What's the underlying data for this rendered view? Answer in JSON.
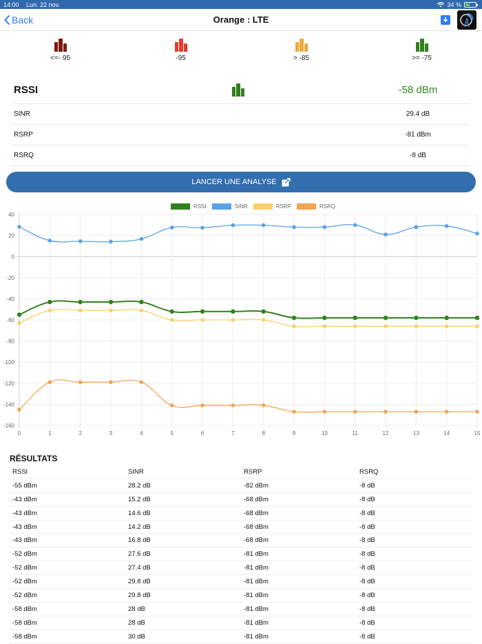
{
  "statusbar": {
    "time": "14:00",
    "date": "Lun. 22 nov.",
    "battery": "34 %"
  },
  "nav": {
    "back_label": "Back",
    "title": "Orange : LTE"
  },
  "signal_legend": [
    {
      "label": "<=- 95",
      "color": "#7d1a12"
    },
    {
      "label": "-95",
      "color": "#e73a2a"
    },
    {
      "label": "> -85",
      "color": "#f0a93a"
    },
    {
      "label": ">= -75",
      "color": "#32801f"
    }
  ],
  "metrics": {
    "main": {
      "name": "RSSI",
      "value": "-58 dBm",
      "color": "#32801f"
    },
    "rows": [
      {
        "name": "SINR",
        "value": "29.4 dB"
      },
      {
        "name": "RSRP",
        "value": "-81 dBm"
      },
      {
        "name": "RSRQ",
        "value": "-8 dB"
      }
    ]
  },
  "analyse_button": {
    "label": "LANCER UNE ANALYSE"
  },
  "chart_data": {
    "type": "line",
    "title": "",
    "xlabel": "",
    "ylabel": "",
    "x": [
      0,
      1,
      2,
      3,
      4,
      5,
      6,
      7,
      8,
      9,
      10,
      11,
      12,
      13,
      14,
      15
    ],
    "ylim": [
      -160,
      40
    ],
    "yticks": [
      40,
      20,
      0,
      -20,
      -40,
      -60,
      -80,
      -100,
      -120,
      -140,
      -160
    ],
    "grid": true,
    "legend_position": "top",
    "series": [
      {
        "name": "RSSI",
        "color": "#32801f",
        "values": [
          -55,
          -43,
          -43,
          -43,
          -43,
          -52,
          -52,
          -52,
          -52,
          -58,
          -58,
          -58,
          -58,
          -58,
          -58,
          -58
        ]
      },
      {
        "name": "SINR",
        "color": "#5aa2e6",
        "values": [
          28.2,
          15.2,
          14.6,
          14.2,
          16.8,
          27.6,
          27.4,
          29.8,
          29.8,
          28,
          28,
          30,
          21,
          28,
          29,
          22
        ]
      },
      {
        "name": "RSRP",
        "color": "#f8d16c",
        "values": [
          -63,
          -51,
          -51,
          -51,
          -51,
          -60,
          -60,
          -60,
          -60,
          -66,
          -66,
          -66,
          -66,
          -66,
          -66,
          -66
        ]
      },
      {
        "name": "RSRQ",
        "color": "#f2a553",
        "values": [
          -145,
          -119,
          -119,
          -119,
          -119,
          -141,
          -141,
          -141,
          -141,
          -147,
          -147,
          -147,
          -147,
          -147,
          -147,
          -147
        ]
      }
    ]
  },
  "results": {
    "title": "RÉSULTATS",
    "columns": [
      "RSSI",
      "SINR",
      "RSRP",
      "RSRQ"
    ],
    "rows": [
      [
        "-55 dBm",
        "28.2 dB",
        "-82 dBm",
        "-8 dB"
      ],
      [
        "-43 dBm",
        "15.2 dB",
        "-68 dBm",
        "-8 dB"
      ],
      [
        "-43 dBm",
        "14.6 dB",
        "-68 dBm",
        "-8 dB"
      ],
      [
        "-43 dBm",
        "14.2 dB",
        "-68 dBm",
        "-8 dB"
      ],
      [
        "-43 dBm",
        "16.8 dB",
        "-68 dBm",
        "-8 dB"
      ],
      [
        "-52 dBm",
        "27.6 dB",
        "-81 dBm",
        "-8 dB"
      ],
      [
        "-52 dBm",
        "27.4 dB",
        "-81 dBm",
        "-8 dB"
      ],
      [
        "-52 dBm",
        "29.8 dB",
        "-81 dBm",
        "-8 dB"
      ],
      [
        "-52 dBm",
        "29.8 dB",
        "-81 dBm",
        "-8 dB"
      ],
      [
        "-58 dBm",
        "28 dB",
        "-81 dBm",
        "-8 dB"
      ],
      [
        "-58 dBm",
        "28 dB",
        "-81 dBm",
        "-8 dB"
      ],
      [
        "-58 dBm",
        "30 dB",
        "-81 dBm",
        "-8 dB"
      ]
    ]
  }
}
